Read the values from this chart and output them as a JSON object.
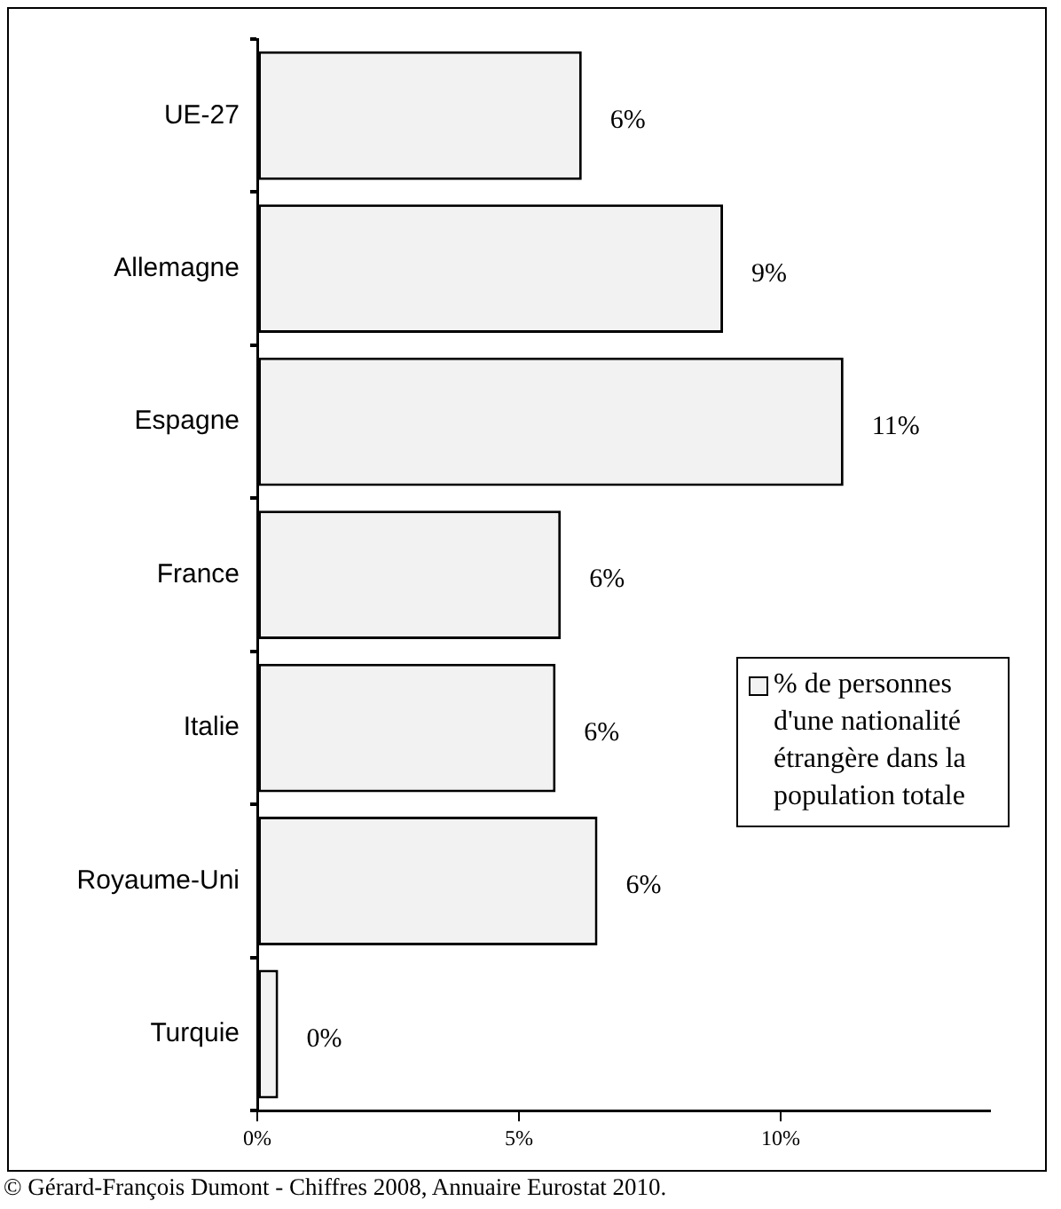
{
  "chart_data": {
    "type": "bar",
    "orientation": "horizontal",
    "categories": [
      "UE-27",
      "Allemagne",
      "Espagne",
      "France",
      "Italie",
      "Royaume-Uni",
      "Turquie"
    ],
    "series": [
      {
        "name": "% de personnes d'une nationalité étrangère dans la population totale",
        "color": "#f2f2f2",
        "values": [
          6.2,
          8.9,
          11.2,
          5.8,
          5.7,
          6.5,
          0.4
        ],
        "value_labels": [
          "6%",
          "9%",
          "11%",
          "6%",
          "6%",
          "6%",
          "0%"
        ]
      }
    ],
    "xlim": [
      0,
      14
    ],
    "xticks": [
      {
        "value": 0,
        "label": "0%"
      },
      {
        "value": 5,
        "label": "5%"
      },
      {
        "value": 10,
        "label": "10%"
      }
    ],
    "grid": false,
    "legend": "right",
    "annotations": [
      "© Gérard-François Dumont - Chiffres 2008, Annuaire Eurostat 2010."
    ]
  }
}
